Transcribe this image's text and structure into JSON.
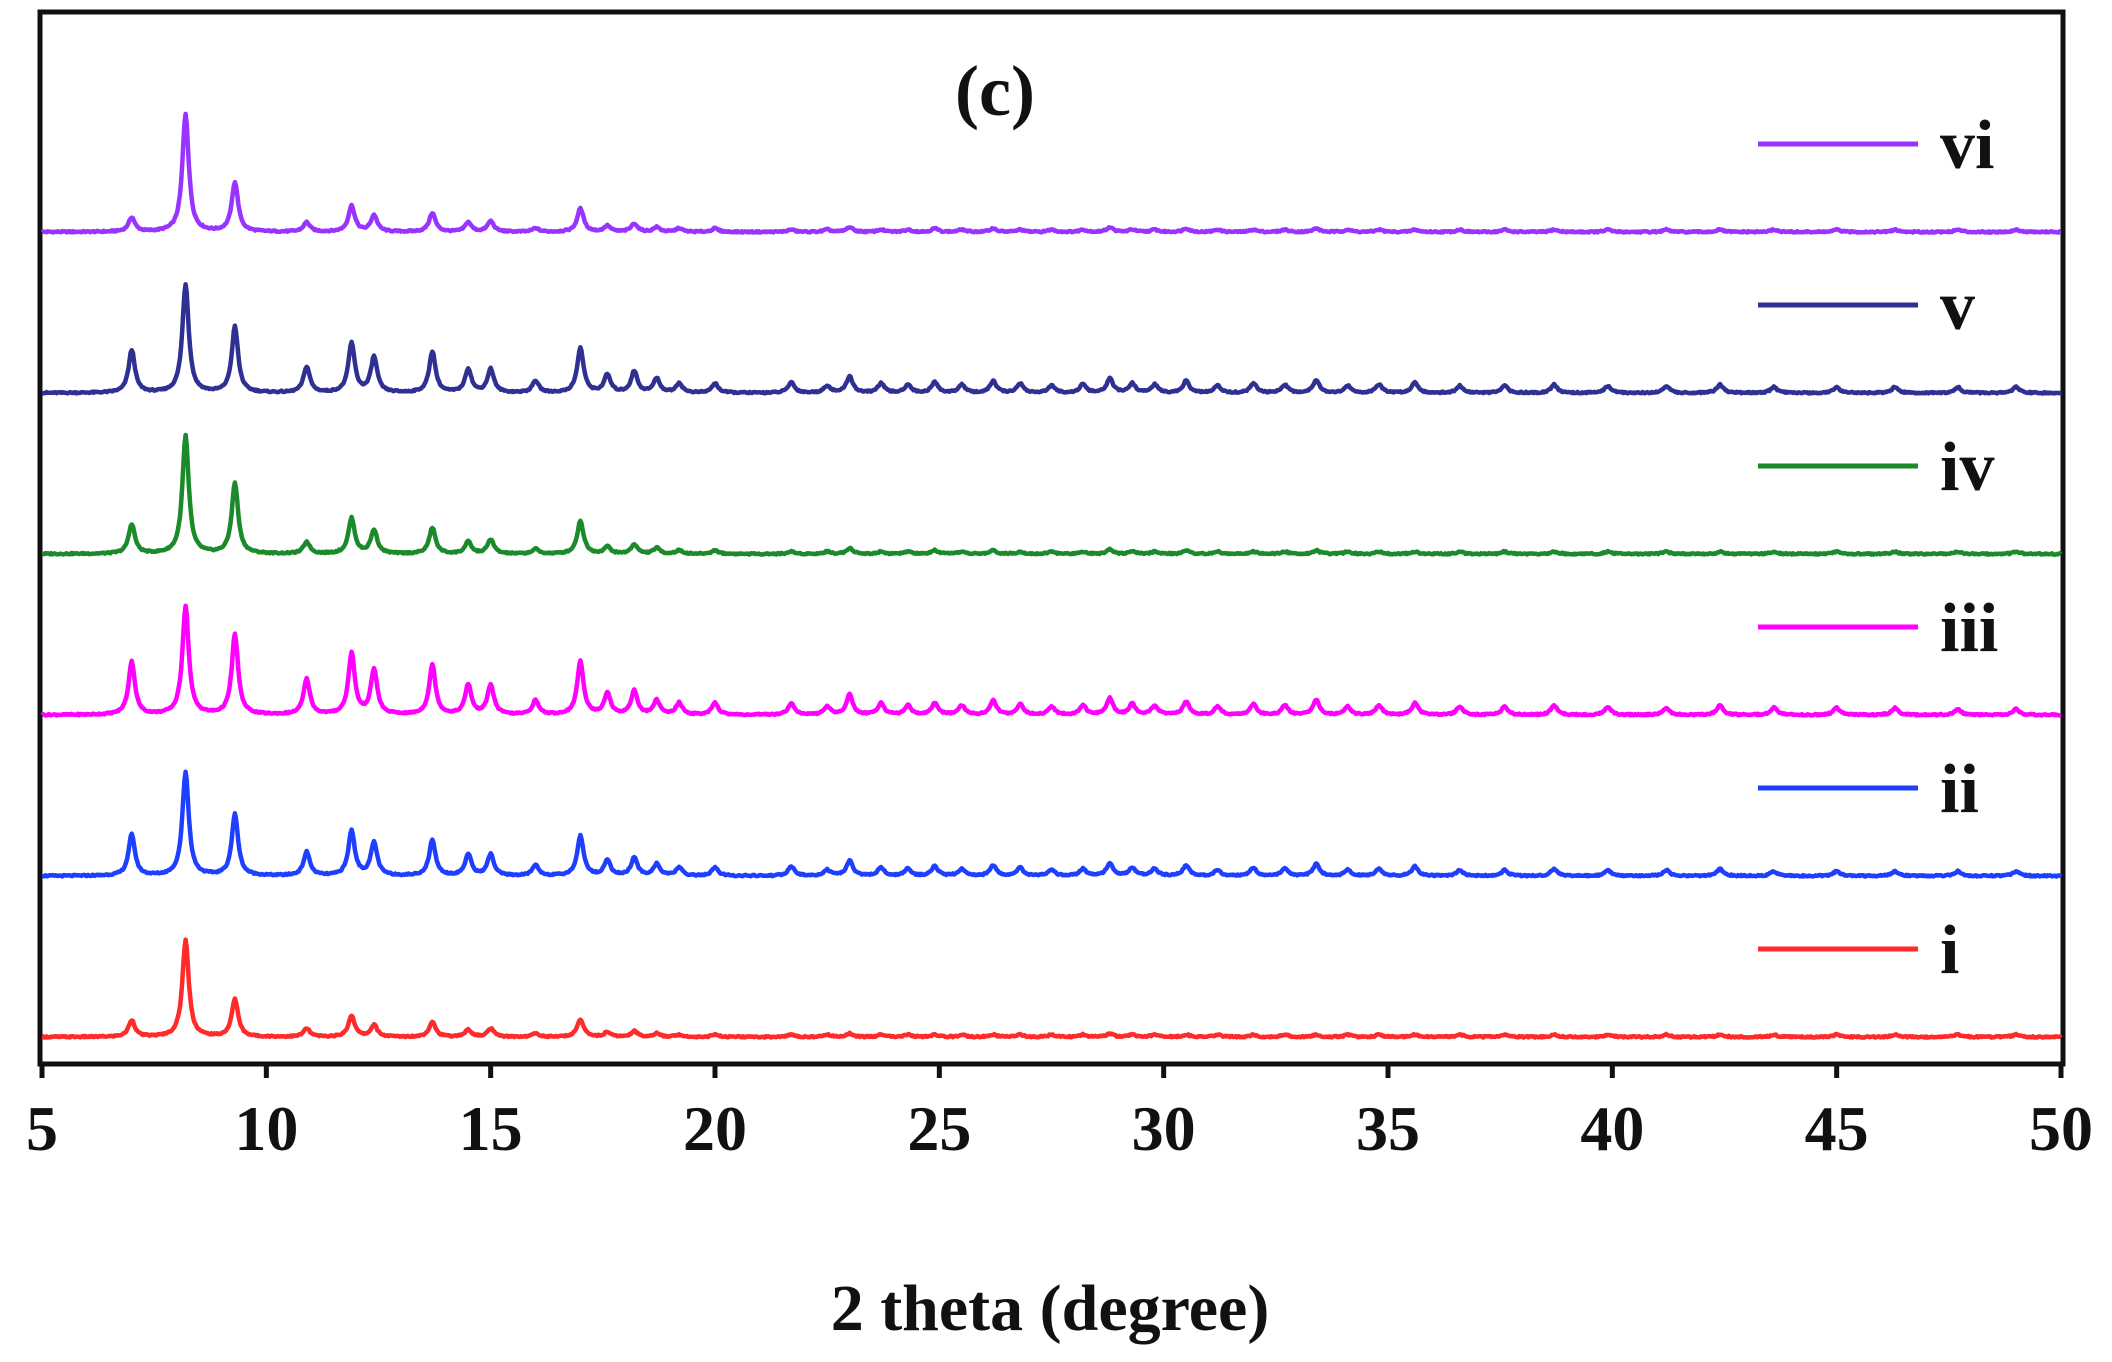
{
  "chart_data": {
    "type": "line",
    "title": "(c)",
    "xlabel": "2 theta (degree)",
    "ylabel": "",
    "xlim": [
      5,
      50
    ],
    "x_ticks": [
      "5",
      "10",
      "15",
      "20",
      "25",
      "30",
      "35",
      "40",
      "45",
      "50"
    ],
    "y_ticks_visible": false,
    "grid": false,
    "legend": "right, inside plot",
    "peaks_2theta": [
      7.0,
      8.2,
      9.3,
      10.9,
      11.9,
      12.4,
      13.7,
      14.5,
      15.0,
      16.0,
      17.0,
      17.6,
      18.2,
      18.7,
      19.2,
      20.0,
      21.7,
      22.5,
      23.0,
      23.7,
      24.3,
      24.9,
      25.5,
      26.2,
      26.8,
      27.5,
      28.2,
      28.8,
      29.3,
      29.8,
      30.5,
      31.2,
      32.0,
      32.7,
      33.4,
      34.1,
      34.8,
      35.6,
      36.6,
      37.6,
      38.7,
      39.9,
      41.2,
      42.4,
      43.6,
      45.0,
      46.3,
      47.7,
      49.0
    ],
    "series": [
      {
        "name": "vi",
        "color": "#9933ff",
        "offset": 5,
        "intensity": [
          0.12,
          1.0,
          0.42,
          0.08,
          0.22,
          0.14,
          0.16,
          0.08,
          0.09,
          0.03,
          0.2,
          0.05,
          0.07,
          0.04,
          0.03,
          0.03,
          0.02,
          0.02,
          0.04,
          0.02,
          0.02,
          0.03,
          0.02,
          0.03,
          0.02,
          0.02,
          0.02,
          0.04,
          0.02,
          0.02,
          0.03,
          0.02,
          0.02,
          0.02,
          0.03,
          0.02,
          0.02,
          0.02,
          0.02,
          0.02,
          0.02,
          0.02,
          0.02,
          0.02,
          0.02,
          0.02,
          0.02,
          0.02,
          0.02
        ]
      },
      {
        "name": "v",
        "color": "#2e3192",
        "offset": 4,
        "intensity": [
          0.36,
          0.92,
          0.56,
          0.22,
          0.42,
          0.3,
          0.35,
          0.2,
          0.2,
          0.1,
          0.38,
          0.15,
          0.18,
          0.12,
          0.08,
          0.08,
          0.09,
          0.06,
          0.14,
          0.08,
          0.07,
          0.09,
          0.07,
          0.1,
          0.08,
          0.06,
          0.07,
          0.12,
          0.08,
          0.07,
          0.1,
          0.06,
          0.08,
          0.07,
          0.11,
          0.06,
          0.07,
          0.09,
          0.06,
          0.06,
          0.07,
          0.06,
          0.06,
          0.07,
          0.05,
          0.05,
          0.05,
          0.05,
          0.05
        ]
      },
      {
        "name": "iv",
        "color": "#1a8a2a",
        "offset": 3,
        "intensity": [
          0.25,
          1.0,
          0.6,
          0.1,
          0.3,
          0.2,
          0.22,
          0.1,
          0.12,
          0.04,
          0.28,
          0.06,
          0.08,
          0.05,
          0.03,
          0.03,
          0.02,
          0.02,
          0.05,
          0.02,
          0.02,
          0.03,
          0.02,
          0.03,
          0.02,
          0.02,
          0.02,
          0.04,
          0.02,
          0.02,
          0.03,
          0.02,
          0.02,
          0.02,
          0.03,
          0.02,
          0.02,
          0.02,
          0.02,
          0.02,
          0.02,
          0.02,
          0.02,
          0.02,
          0.02,
          0.02,
          0.02,
          0.02,
          0.02
        ]
      },
      {
        "name": "iii",
        "color": "#ff00ff",
        "offset": 2,
        "intensity": [
          0.45,
          0.92,
          0.68,
          0.3,
          0.52,
          0.38,
          0.42,
          0.25,
          0.25,
          0.12,
          0.45,
          0.18,
          0.2,
          0.12,
          0.1,
          0.1,
          0.1,
          0.07,
          0.17,
          0.1,
          0.08,
          0.1,
          0.08,
          0.12,
          0.09,
          0.07,
          0.08,
          0.14,
          0.09,
          0.08,
          0.11,
          0.07,
          0.09,
          0.08,
          0.13,
          0.07,
          0.08,
          0.1,
          0.07,
          0.07,
          0.08,
          0.07,
          0.06,
          0.08,
          0.06,
          0.06,
          0.06,
          0.05,
          0.05
        ]
      },
      {
        "name": "ii",
        "color": "#1f3fff",
        "offset": 1,
        "intensity": [
          0.35,
          0.88,
          0.52,
          0.2,
          0.38,
          0.28,
          0.3,
          0.18,
          0.18,
          0.09,
          0.34,
          0.13,
          0.15,
          0.1,
          0.07,
          0.07,
          0.08,
          0.05,
          0.13,
          0.07,
          0.06,
          0.08,
          0.06,
          0.09,
          0.07,
          0.05,
          0.06,
          0.11,
          0.07,
          0.06,
          0.09,
          0.05,
          0.07,
          0.06,
          0.1,
          0.05,
          0.06,
          0.08,
          0.05,
          0.05,
          0.06,
          0.05,
          0.05,
          0.06,
          0.04,
          0.04,
          0.04,
          0.04,
          0.04
        ]
      },
      {
        "name": "i",
        "color": "#ff2a2a",
        "offset": 0,
        "intensity": [
          0.14,
          0.82,
          0.32,
          0.07,
          0.18,
          0.1,
          0.13,
          0.06,
          0.07,
          0.03,
          0.15,
          0.04,
          0.05,
          0.03,
          0.02,
          0.02,
          0.02,
          0.02,
          0.03,
          0.02,
          0.02,
          0.02,
          0.02,
          0.02,
          0.02,
          0.02,
          0.02,
          0.03,
          0.02,
          0.02,
          0.02,
          0.02,
          0.02,
          0.02,
          0.02,
          0.02,
          0.02,
          0.02,
          0.02,
          0.02,
          0.02,
          0.02,
          0.02,
          0.02,
          0.02,
          0.02,
          0.02,
          0.02,
          0.02
        ]
      }
    ]
  }
}
